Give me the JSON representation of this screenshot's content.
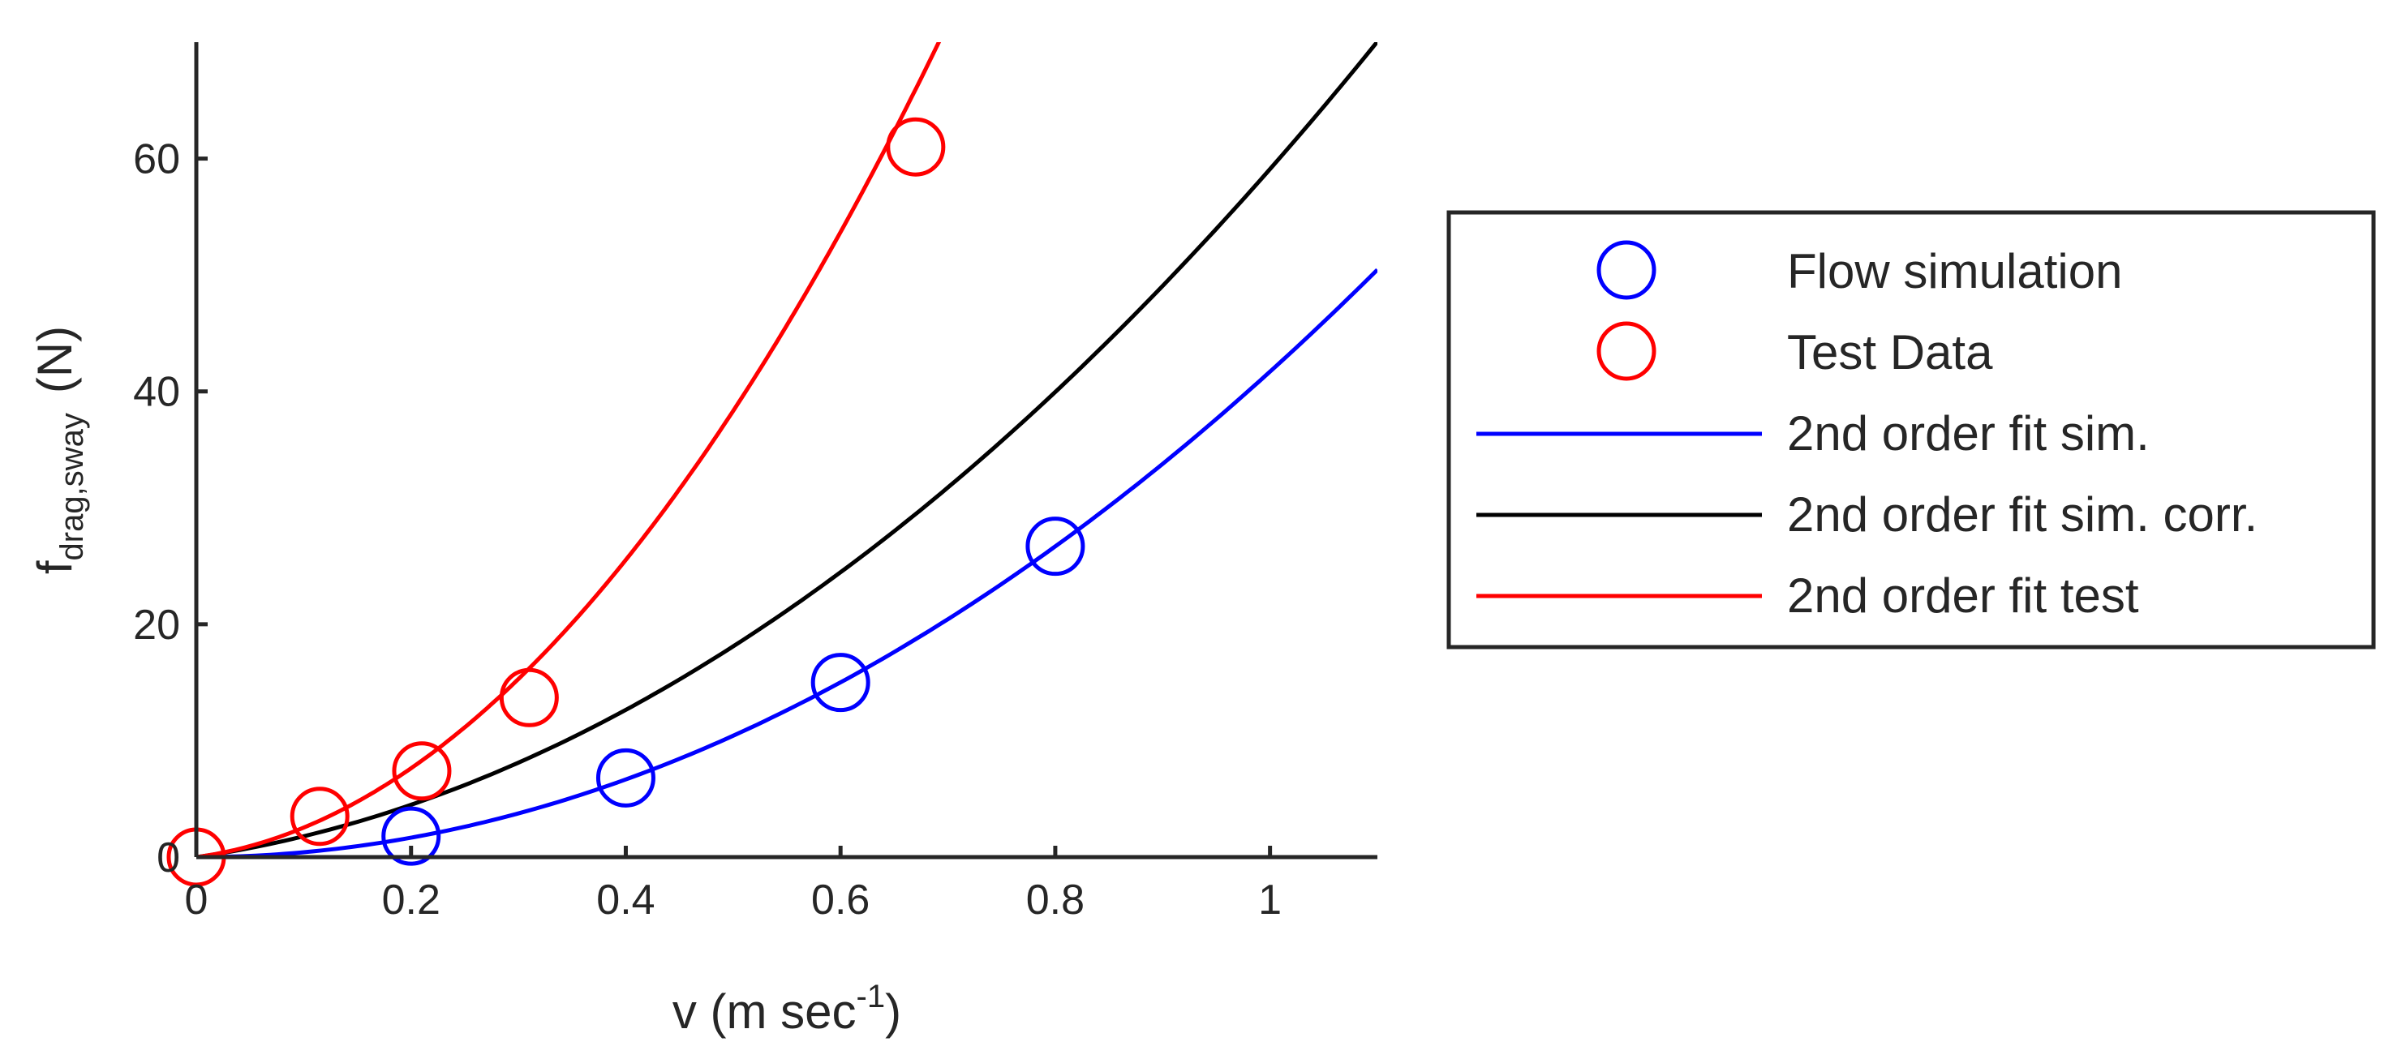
{
  "chart_data": {
    "type": "line",
    "title": "",
    "xlabel": "v (m sec",
    "xlabel_sup": "-1",
    "xlabel_end": ")",
    "ylabel_base": "f",
    "ylabel_sub": "drag,sway",
    "ylabel_end": "(N)",
    "xlim": [
      0,
      1.1
    ],
    "ylim": [
      0,
      70
    ],
    "xticks": [
      0,
      0.2,
      0.4,
      0.6,
      0.8,
      1
    ],
    "xtick_labels": [
      "0",
      "0.2",
      "0.4",
      "0.6",
      "0.8",
      "1"
    ],
    "yticks": [
      0,
      20,
      40,
      60
    ],
    "ytick_labels": [
      "0",
      "20",
      "40",
      "60"
    ],
    "grid": false,
    "legend_position": "outside-right",
    "series": [
      {
        "name": "Flow simulation",
        "kind": "markers",
        "marker": "circle",
        "color": "#0000ff",
        "x": [
          0.2,
          0.4,
          0.6,
          0.8
        ],
        "y": [
          1.8,
          6.8,
          15.0,
          26.7
        ]
      },
      {
        "name": "Test Data",
        "kind": "markers",
        "marker": "circle",
        "color": "#ff0000",
        "x": [
          0,
          0.115,
          0.21,
          0.31,
          0.67
        ],
        "y": [
          0,
          3.5,
          7.4,
          13.7,
          61.0
        ]
      },
      {
        "name": "2nd order fit sim.",
        "kind": "line",
        "color": "#0000ff",
        "coef": [
          41.7,
          0,
          0
        ],
        "x_range": [
          0,
          1.1
        ]
      },
      {
        "name": "2nd order fit sim. corr.",
        "kind": "line",
        "color": "#000000",
        "coef": [
          45.8,
          13.3,
          0
        ],
        "x_range": [
          0,
          1.1
        ]
      },
      {
        "name": "2nd order fit test",
        "kind": "line",
        "color": "#ff0000",
        "coef": [
          128.3,
          12.5,
          0
        ],
        "x_range": [
          0,
          0.72
        ]
      }
    ]
  }
}
